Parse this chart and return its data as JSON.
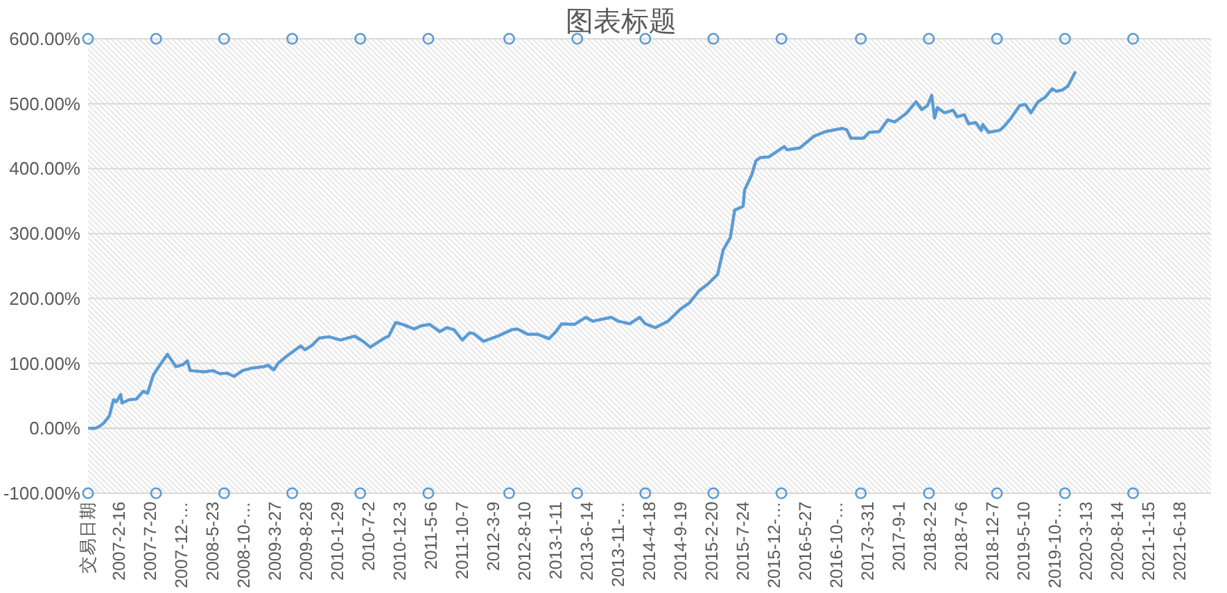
{
  "chart_data": {
    "type": "line",
    "title": "图表标题",
    "xlim": [
      "2006-09-15",
      "2021-11-19"
    ],
    "xticks": [
      {
        "value": "2006-09-15",
        "label": "交易日期"
      },
      {
        "value": "2007-02-16",
        "label": "2007-2-16"
      },
      {
        "value": "2007-07-20",
        "label": "2007-7-20"
      },
      {
        "value": "2007-12-21",
        "label": "2007-12-…"
      },
      {
        "value": "2008-05-23",
        "label": "2008-5-23"
      },
      {
        "value": "2008-10-24",
        "label": "2008-10-…"
      },
      {
        "value": "2009-03-27",
        "label": "2009-3-27"
      },
      {
        "value": "2009-08-28",
        "label": "2009-8-28"
      },
      {
        "value": "2010-01-29",
        "label": "2010-1-29"
      },
      {
        "value": "2010-07-02",
        "label": "2010-7-2"
      },
      {
        "value": "2010-12-03",
        "label": "2010-12-3"
      },
      {
        "value": "2011-05-06",
        "label": "2011-5-6"
      },
      {
        "value": "2011-10-07",
        "label": "2011-10-7"
      },
      {
        "value": "2012-03-09",
        "label": "2012-3-9"
      },
      {
        "value": "2012-08-10",
        "label": "2012-8-10"
      },
      {
        "value": "2013-01-11",
        "label": "2013-1-11"
      },
      {
        "value": "2013-06-14",
        "label": "2013-6-14"
      },
      {
        "value": "2013-11-15",
        "label": "2013-11-…"
      },
      {
        "value": "2014-04-18",
        "label": "2014-4-18"
      },
      {
        "value": "2014-09-19",
        "label": "2014-9-19"
      },
      {
        "value": "2015-02-20",
        "label": "2015-2-20"
      },
      {
        "value": "2015-07-24",
        "label": "2015-7-24"
      },
      {
        "value": "2015-12-25",
        "label": "2015-12-…"
      },
      {
        "value": "2016-05-27",
        "label": "2016-5-27"
      },
      {
        "value": "2016-10-28",
        "label": "2016-10-…"
      },
      {
        "value": "2017-03-31",
        "label": "2017-3-31"
      },
      {
        "value": "2017-09-01",
        "label": "2017-9-1"
      },
      {
        "value": "2018-02-02",
        "label": "2018-2-2"
      },
      {
        "value": "2018-07-06",
        "label": "2018-7-6"
      },
      {
        "value": "2018-12-07",
        "label": "2018-12-7"
      },
      {
        "value": "2019-05-10",
        "label": "2019-5-10"
      },
      {
        "value": "2019-10-11",
        "label": "2019-10-…"
      },
      {
        "value": "2020-03-13",
        "label": "2020-3-13"
      },
      {
        "value": "2020-08-14",
        "label": "2020-8-14"
      },
      {
        "value": "2021-01-15",
        "label": "2021-1-15"
      },
      {
        "value": "2021-06-18",
        "label": "2021-6-18"
      }
    ],
    "ylim": [
      -100,
      600
    ],
    "yticks": [
      {
        "value": -100,
        "label": "-100.00%"
      },
      {
        "value": 0,
        "label": "0.00%"
      },
      {
        "value": 100,
        "label": "100.00%"
      },
      {
        "value": 200,
        "label": "200.00%"
      },
      {
        "value": 300,
        "label": "300.00%"
      },
      {
        "value": 400,
        "label": "400.00%"
      },
      {
        "value": 500,
        "label": "500.00%"
      },
      {
        "value": 600,
        "label": "600.00%"
      }
    ],
    "grid": "y",
    "series": [
      {
        "color": "#5b9bd5",
        "x": [
          "2006-09-22",
          "2006-10-20",
          "2006-11-10",
          "2006-12-01",
          "2006-12-29",
          "2007-01-19",
          "2007-02-02",
          "2007-02-23",
          "2007-03-02",
          "2007-04-06",
          "2007-05-11",
          "2007-06-15",
          "2007-07-06",
          "2007-08-03",
          "2007-08-24",
          "2007-10-12",
          "2007-11-23",
          "2007-12-28",
          "2008-01-18",
          "2008-02-01",
          "2008-04-11",
          "2008-05-23",
          "2008-06-27",
          "2008-08-01",
          "2008-09-05",
          "2008-10-17",
          "2008-12-05",
          "2009-01-30",
          "2009-02-20",
          "2009-03-20",
          "2009-04-10",
          "2009-05-22",
          "2009-07-31",
          "2009-08-21",
          "2009-09-25",
          "2009-10-30",
          "2009-12-18",
          "2010-02-12",
          "2010-04-23",
          "2010-06-04",
          "2010-07-09",
          "2010-09-17",
          "2010-10-08",
          "2010-11-12",
          "2010-12-17",
          "2011-02-11",
          "2011-03-18",
          "2011-04-29",
          "2011-06-17",
          "2011-07-22",
          "2011-08-26",
          "2011-10-07",
          "2011-11-11",
          "2011-12-02",
          "2012-01-20",
          "2012-03-30",
          "2012-04-20",
          "2012-06-08",
          "2012-07-06",
          "2012-08-24",
          "2012-10-12",
          "2012-12-07",
          "2013-01-11",
          "2013-02-08",
          "2013-04-12",
          "2013-06-07",
          "2013-07-12",
          "2013-10-11",
          "2013-11-15",
          "2014-01-10",
          "2014-02-28",
          "2014-03-28",
          "2014-05-16",
          "2014-07-18",
          "2014-09-19",
          "2014-10-31",
          "2014-12-19",
          "2015-01-30",
          "2015-03-20",
          "2015-04-17",
          "2015-05-22",
          "2015-06-12",
          "2015-07-24",
          "2015-07-31",
          "2015-09-04",
          "2015-09-25",
          "2015-10-16",
          "2015-11-27",
          "2016-02-12",
          "2016-02-26",
          "2016-04-29",
          "2016-07-08",
          "2016-09-02",
          "2016-11-25",
          "2016-12-16",
          "2017-01-06",
          "2017-03-10",
          "2017-04-07",
          "2017-05-26",
          "2017-07-07",
          "2017-08-11",
          "2017-10-06",
          "2017-11-24",
          "2017-12-22",
          "2018-01-19",
          "2018-02-09",
          "2018-02-23",
          "2018-03-09",
          "2018-04-13",
          "2018-05-25",
          "2018-06-15",
          "2018-07-20",
          "2018-08-10",
          "2018-09-14",
          "2018-10-12",
          "2018-10-19",
          "2018-11-16",
          "2019-01-11",
          "2019-02-01",
          "2019-03-08",
          "2019-04-19",
          "2019-05-17",
          "2019-06-14",
          "2019-07-19",
          "2019-08-23",
          "2019-09-27",
          "2019-10-18",
          "2019-11-15",
          "2019-12-13",
          "2020-01-17"
        ],
        "values": [
          0,
          0,
          3,
          8,
          19,
          44,
          41,
          52,
          39,
          44,
          45,
          57,
          54,
          82,
          92,
          114,
          95,
          98,
          104,
          89,
          87,
          89,
          84,
          85,
          80,
          89,
          93,
          95,
          97,
          90,
          100,
          111,
          127,
          121,
          128,
          139,
          141,
          136,
          142,
          134,
          125,
          139,
          142,
          163,
          160,
          153,
          158,
          160,
          149,
          155,
          152,
          136,
          147,
          146,
          134,
          142,
          145,
          152,
          153,
          145,
          145,
          138,
          149,
          161,
          160,
          171,
          165,
          171,
          165,
          161,
          171,
          161,
          155,
          165,
          184,
          193,
          212,
          222,
          237,
          275,
          294,
          336,
          342,
          367,
          390,
          412,
          417,
          418,
          434,
          429,
          432,
          450,
          457,
          462,
          460,
          447,
          447,
          456,
          457,
          475,
          472,
          485,
          503,
          491,
          497,
          513,
          478,
          494,
          486,
          490,
          480,
          483,
          469,
          471,
          459,
          468,
          456,
          459,
          465,
          478,
          497,
          499,
          486,
          503,
          510,
          523,
          519,
          521,
          527,
          548
        ]
      },
      {
        "type": "scatter",
        "marker": "circle",
        "color": "#5b9bd5",
        "x": [
          "2006-09-15",
          "2007-08-17",
          "2008-07-18",
          "2009-06-19",
          "2010-05-21",
          "2011-04-22",
          "2012-05-25",
          "2013-04-26",
          "2014-03-28",
          "2015-02-27",
          "2016-01-29",
          "2017-02-24",
          "2018-01-26",
          "2018-12-28",
          "2019-11-29",
          "2020-10-30"
        ],
        "values": [
          600,
          600,
          600,
          600,
          600,
          600,
          600,
          600,
          600,
          600,
          600,
          600,
          600,
          600,
          600,
          600
        ]
      },
      {
        "type": "scatter",
        "marker": "circle",
        "color": "#5b9bd5",
        "x": [
          "2006-09-15",
          "2007-08-17",
          "2008-07-18",
          "2009-06-19",
          "2010-05-21",
          "2011-04-22",
          "2012-05-25",
          "2013-04-26",
          "2014-03-28",
          "2015-02-27",
          "2016-01-29",
          "2017-02-24",
          "2018-01-26",
          "2018-12-28",
          "2019-11-29",
          "2020-10-30"
        ],
        "values": [
          -100,
          -100,
          -100,
          -100,
          -100,
          -100,
          -100,
          -100,
          -100,
          -100,
          -100,
          -100,
          -100,
          -100,
          -100,
          -100
        ]
      }
    ]
  }
}
